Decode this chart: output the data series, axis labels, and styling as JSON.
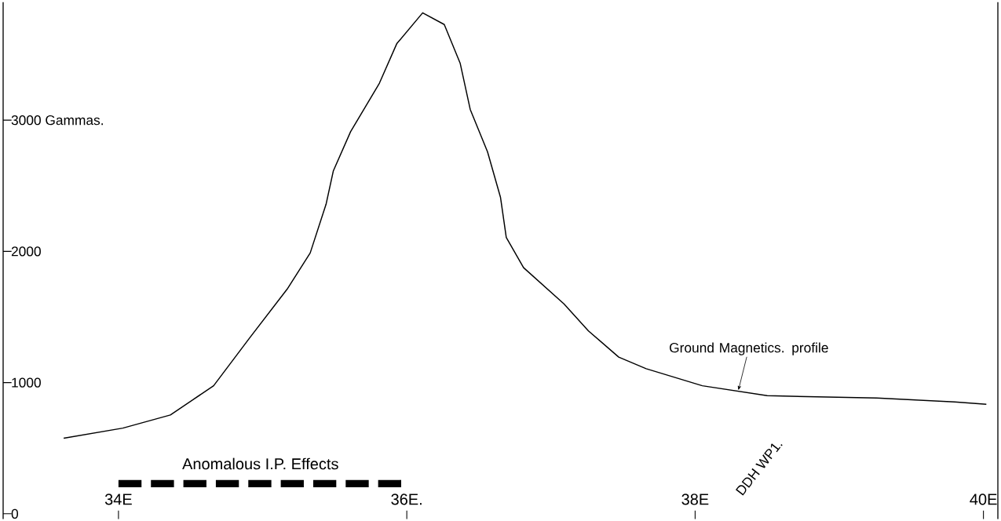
{
  "chart_data": {
    "type": "line",
    "x": [
      33.62,
      34.03,
      34.36,
      34.66,
      34.91,
      35.17,
      35.33,
      35.44,
      35.49,
      35.61,
      35.81,
      35.93,
      36.11,
      36.26,
      36.37,
      36.44,
      36.56,
      36.65,
      36.69,
      36.81,
      37.09,
      37.26,
      37.47,
      37.66,
      38.05,
      38.5,
      39.26,
      39.8,
      40.02
    ],
    "series": [
      {
        "color": "#000000",
        "values": [
          576,
          653,
          753,
          976,
          1341,
          1712,
          1988,
          2359,
          2612,
          2912,
          3282,
          3582,
          3818,
          3729,
          3435,
          3082,
          2759,
          2412,
          2106,
          1876,
          1600,
          1394,
          1194,
          1106,
          976,
          900,
          882,
          853,
          835
        ]
      },
      {
        "name": "Anomalous I.P. Effects",
        "color": "#000000",
        "x": [
          34.0,
          35.97
        ],
        "values": [
          230,
          230
        ],
        "line_style": "dashed"
      }
    ],
    "xlim": [
      33.2,
      40.1
    ],
    "ylim": [
      -40,
      3900
    ],
    "xticks": [
      {
        "value": 34,
        "label": "34E"
      },
      {
        "value": 36,
        "label": "36E."
      },
      {
        "value": 38,
        "label": "38E"
      },
      {
        "value": 40,
        "label": "40E"
      }
    ],
    "yticks": [
      0,
      1000,
      2000,
      {
        "value": 3000,
        "label": "3000 Gammas."
      }
    ],
    "annotations": [
      {
        "text": "Ground Magnetics. profile",
        "x": 38.3,
        "y": 941
      },
      "DDH WP1."
    ],
    "marker": "none",
    "line_style": "solid"
  }
}
